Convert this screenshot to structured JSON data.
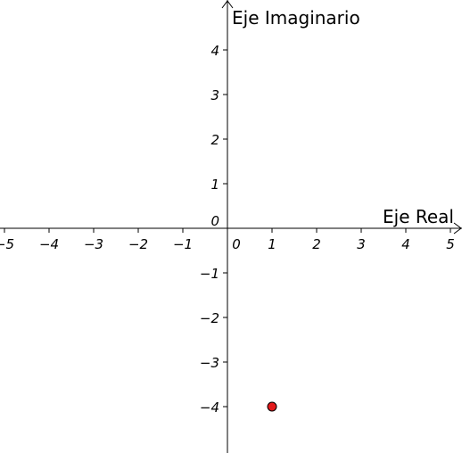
{
  "chart_data": {
    "type": "scatter",
    "title": "",
    "xlabel": "Eje Real",
    "ylabel": "Eje Imaginario",
    "xlim": [
      -5.1,
      5.26
    ],
    "ylim": [
      -5.04,
      5.12
    ],
    "x_ticks": [
      -5,
      -4,
      -3,
      -2,
      -1,
      1,
      2,
      3,
      4,
      5
    ],
    "x_tick_labels": [
      "−5",
      "−4",
      "−3",
      "−2",
      "−1",
      "1",
      "2",
      "3",
      "4",
      "5"
    ],
    "y_ticks": [
      4,
      3,
      2,
      1,
      -1,
      -2,
      -3,
      -4
    ],
    "y_tick_labels": [
      "4",
      "3",
      "2",
      "1",
      "−1",
      "−2",
      "−3",
      "−4"
    ],
    "origin_labels": [
      "0",
      "0"
    ],
    "grid": false,
    "series": [
      {
        "x": [
          1
        ],
        "y": [
          -4
        ],
        "color": "#e31a1c"
      }
    ]
  }
}
